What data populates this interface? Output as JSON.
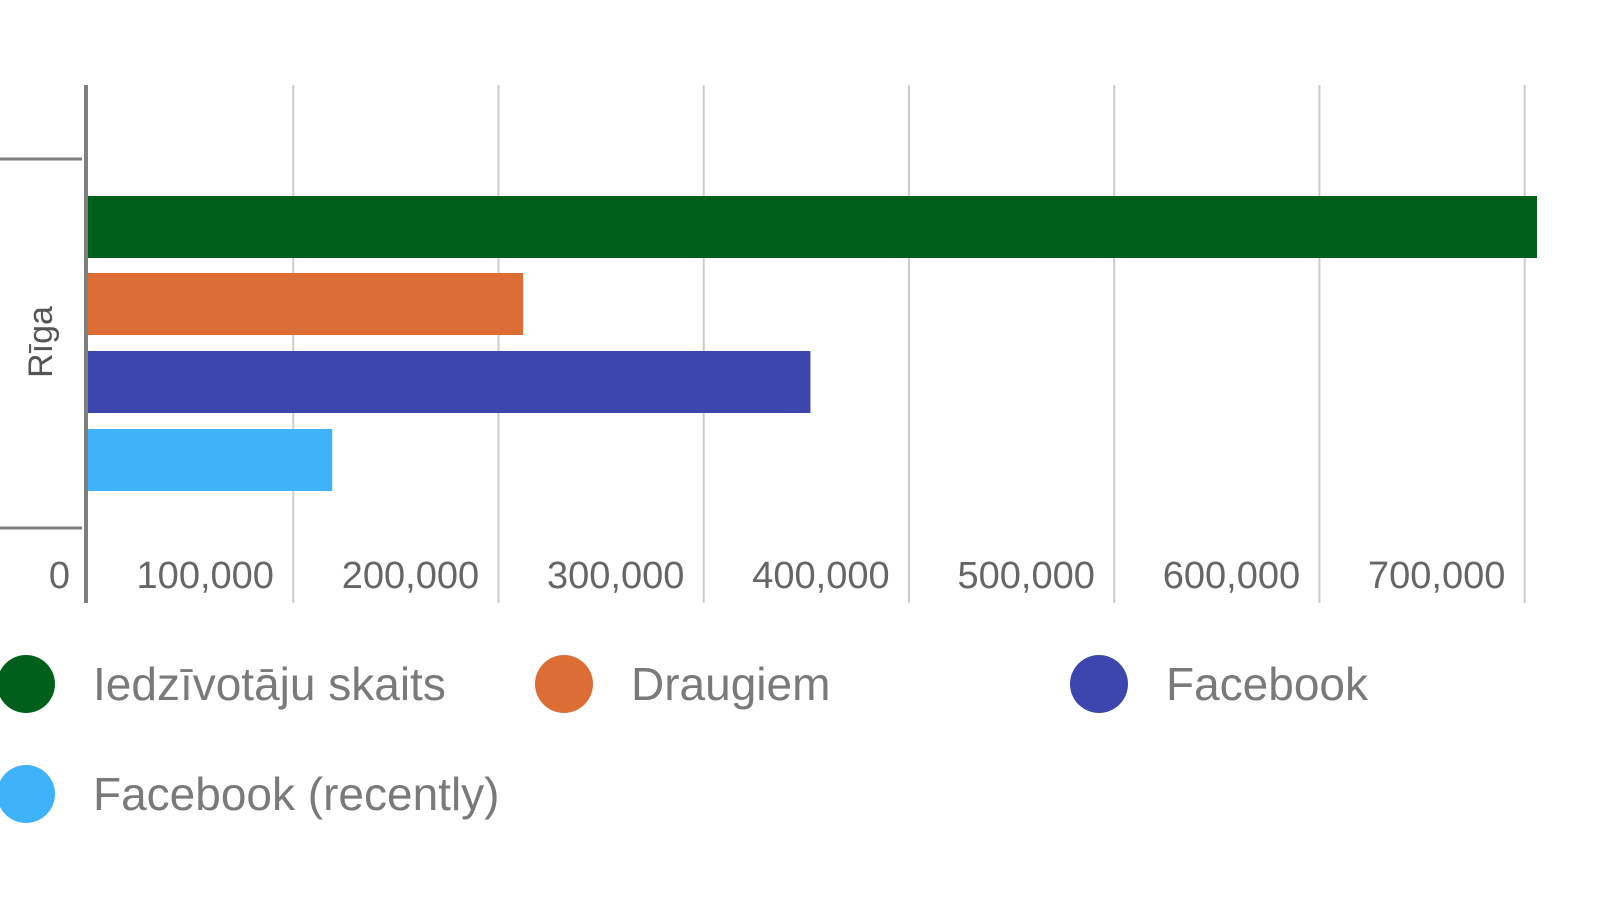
{
  "chart_data": {
    "type": "bar",
    "orientation": "horizontal",
    "categories": [
      "Rīga"
    ],
    "series": [
      {
        "name": "Iedzīvotāju skaits",
        "color": "#005f1a",
        "values": [
          706000
        ]
      },
      {
        "name": "Draugiem",
        "color": "#dc6e35",
        "values": [
          212000
        ]
      },
      {
        "name": "Facebook",
        "color": "#3c47ad",
        "values": [
          352000
        ]
      },
      {
        "name": "Facebook (recently)",
        "color": "#3eb3fb",
        "values": [
          119000
        ]
      }
    ],
    "x_ticks": [
      "0",
      "100,000",
      "200,000",
      "300,000",
      "400,000",
      "500,000",
      "600,000",
      "700,000"
    ],
    "xlim": [
      0,
      706000
    ],
    "grid": true,
    "legend_placement": "bottom"
  }
}
